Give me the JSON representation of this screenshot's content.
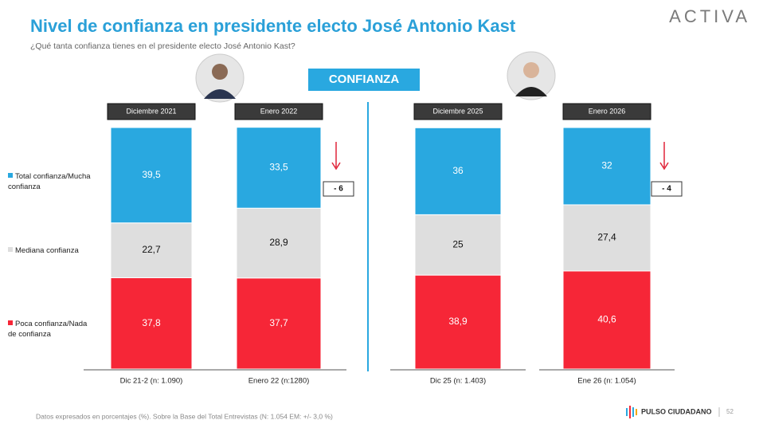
{
  "chart_data": {
    "type": "stacked_bar",
    "title": "Nivel de confianza en presidente electo José Antonio Kast",
    "subtitle": "¿Qué tanta confianza tienes en el presidente electo José Antonio Kast?",
    "logo": "ACTIVA",
    "badge": "CONFIANZA",
    "periods": [
      "Diciembre 2021",
      "Enero  2022",
      "Diciembre 2025",
      "Enero  2026"
    ],
    "categories": [
      "Dic 21-2 (n: 1.090)",
      "Enero 22 (n:1280)",
      "Dic 25 (n: 1.403)",
      "Ene 26 (n: 1.054)"
    ],
    "series": [
      {
        "name": "Total confianza/Mucha confianza",
        "color": "#29a8e0",
        "values": [
          39.5,
          33.5,
          36,
          32
        ],
        "value_labels": [
          "39,5",
          "33,5",
          "36",
          "32"
        ]
      },
      {
        "name": "Mediana confianza",
        "color": "#dedede",
        "values": [
          22.7,
          28.9,
          25,
          27.4
        ],
        "value_labels": [
          "22,7",
          "28,9",
          "25",
          "27,4"
        ]
      },
      {
        "name": "Poca confianza/Nada de confianza",
        "color": "#f62637",
        "values": [
          37.8,
          37.7,
          38.9,
          40.6
        ],
        "value_labels": [
          "37,8",
          "37,7",
          "38,9",
          "40,6"
        ]
      }
    ],
    "changes": [
      null,
      "- 6",
      null,
      "- 4"
    ],
    "footnote": "Datos expresados en porcentajes (%). Sobre la Base del Total Entrevistas (N: 1.054  EM: +/- 3,0 %)",
    "brand": "PULSO CIUDADANO",
    "page_number": "52"
  }
}
